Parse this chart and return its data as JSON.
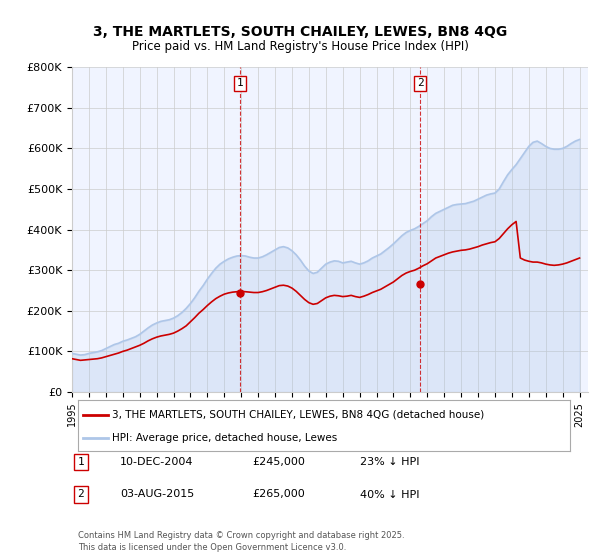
{
  "title_line1": "3, THE MARTLETS, SOUTH CHAILEY, LEWES, BN8 4QG",
  "title_line2": "Price paid vs. HM Land Registry's House Price Index (HPI)",
  "xlabel": "",
  "ylabel": "",
  "ylim": [
    0,
    800000
  ],
  "yticks": [
    0,
    100000,
    200000,
    300000,
    400000,
    500000,
    600000,
    700000,
    800000
  ],
  "ytick_labels": [
    "£0",
    "£100K",
    "£200K",
    "£300K",
    "£400K",
    "£500K",
    "£600K",
    "£700K",
    "£800K"
  ],
  "xlim_start": 1995.0,
  "xlim_end": 2025.5,
  "xticks": [
    1995,
    1996,
    1997,
    1998,
    1999,
    2000,
    2001,
    2002,
    2003,
    2004,
    2005,
    2006,
    2007,
    2008,
    2009,
    2010,
    2011,
    2012,
    2013,
    2014,
    2015,
    2016,
    2017,
    2018,
    2019,
    2020,
    2021,
    2022,
    2023,
    2024,
    2025
  ],
  "hpi_color": "#aec6e8",
  "price_color": "#cc0000",
  "vline_color": "#cc0000",
  "background_color": "#f0f4ff",
  "sale1_x": 2004.94,
  "sale1_y": 245000,
  "sale1_label": "1",
  "sale2_x": 2015.58,
  "sale2_y": 265000,
  "sale2_label": "2",
  "legend_entry1": "3, THE MARTLETS, SOUTH CHAILEY, LEWES, BN8 4QG (detached house)",
  "legend_entry2": "HPI: Average price, detached house, Lewes",
  "table_row1_num": "1",
  "table_row1_date": "10-DEC-2004",
  "table_row1_price": "£245,000",
  "table_row1_hpi": "23% ↓ HPI",
  "table_row2_num": "2",
  "table_row2_date": "03-AUG-2015",
  "table_row2_price": "£265,000",
  "table_row2_hpi": "40% ↓ HPI",
  "footer": "Contains HM Land Registry data © Crown copyright and database right 2025.\nThis data is licensed under the Open Government Licence v3.0.",
  "hpi_data_x": [
    1995.0,
    1995.25,
    1995.5,
    1995.75,
    1996.0,
    1996.25,
    1996.5,
    1996.75,
    1997.0,
    1997.25,
    1997.5,
    1997.75,
    1998.0,
    1998.25,
    1998.5,
    1998.75,
    1999.0,
    1999.25,
    1999.5,
    1999.75,
    2000.0,
    2000.25,
    2000.5,
    2000.75,
    2001.0,
    2001.25,
    2001.5,
    2001.75,
    2002.0,
    2002.25,
    2002.5,
    2002.75,
    2003.0,
    2003.25,
    2003.5,
    2003.75,
    2004.0,
    2004.25,
    2004.5,
    2004.75,
    2005.0,
    2005.25,
    2005.5,
    2005.75,
    2006.0,
    2006.25,
    2006.5,
    2006.75,
    2007.0,
    2007.25,
    2007.5,
    2007.75,
    2008.0,
    2008.25,
    2008.5,
    2008.75,
    2009.0,
    2009.25,
    2009.5,
    2009.75,
    2010.0,
    2010.25,
    2010.5,
    2010.75,
    2011.0,
    2011.25,
    2011.5,
    2011.75,
    2012.0,
    2012.25,
    2012.5,
    2012.75,
    2013.0,
    2013.25,
    2013.5,
    2013.75,
    2014.0,
    2014.25,
    2014.5,
    2014.75,
    2015.0,
    2015.25,
    2015.5,
    2015.75,
    2016.0,
    2016.25,
    2016.5,
    2016.75,
    2017.0,
    2017.25,
    2017.5,
    2017.75,
    2018.0,
    2018.25,
    2018.5,
    2018.75,
    2019.0,
    2019.25,
    2019.5,
    2019.75,
    2020.0,
    2020.25,
    2020.5,
    2020.75,
    2021.0,
    2021.25,
    2021.5,
    2021.75,
    2022.0,
    2022.25,
    2022.5,
    2022.75,
    2023.0,
    2023.25,
    2023.5,
    2023.75,
    2024.0,
    2024.25,
    2024.5,
    2024.75,
    2025.0
  ],
  "hpi_data_y": [
    95000,
    93000,
    91000,
    92000,
    95000,
    97000,
    99000,
    102000,
    107000,
    112000,
    117000,
    120000,
    125000,
    128000,
    132000,
    136000,
    142000,
    150000,
    158000,
    165000,
    170000,
    174000,
    176000,
    178000,
    182000,
    188000,
    196000,
    206000,
    218000,
    232000,
    248000,
    262000,
    278000,
    292000,
    305000,
    315000,
    322000,
    328000,
    332000,
    335000,
    336000,
    335000,
    332000,
    330000,
    330000,
    333000,
    338000,
    344000,
    350000,
    356000,
    358000,
    355000,
    348000,
    338000,
    325000,
    310000,
    298000,
    292000,
    295000,
    305000,
    315000,
    320000,
    323000,
    322000,
    318000,
    320000,
    322000,
    318000,
    315000,
    318000,
    323000,
    330000,
    335000,
    340000,
    348000,
    356000,
    365000,
    375000,
    385000,
    393000,
    398000,
    402000,
    408000,
    415000,
    422000,
    432000,
    440000,
    445000,
    450000,
    455000,
    460000,
    462000,
    463000,
    464000,
    467000,
    470000,
    475000,
    480000,
    485000,
    488000,
    490000,
    500000,
    518000,
    535000,
    548000,
    560000,
    575000,
    590000,
    605000,
    615000,
    618000,
    612000,
    605000,
    600000,
    598000,
    598000,
    600000,
    605000,
    612000,
    618000,
    622000
  ],
  "price_data_x": [
    1995.0,
    1995.25,
    1995.5,
    1995.75,
    1996.0,
    1996.25,
    1996.5,
    1996.75,
    1997.0,
    1997.25,
    1997.5,
    1997.75,
    1998.0,
    1998.25,
    1998.5,
    1998.75,
    1999.0,
    1999.25,
    1999.5,
    1999.75,
    2000.0,
    2000.25,
    2000.5,
    2000.75,
    2001.0,
    2001.25,
    2001.5,
    2001.75,
    2002.0,
    2002.25,
    2002.5,
    2002.75,
    2003.0,
    2003.25,
    2003.5,
    2003.75,
    2004.0,
    2004.25,
    2004.5,
    2004.75,
    2005.0,
    2005.25,
    2005.5,
    2005.75,
    2006.0,
    2006.25,
    2006.5,
    2006.75,
    2007.0,
    2007.25,
    2007.5,
    2007.75,
    2008.0,
    2008.25,
    2008.5,
    2008.75,
    2009.0,
    2009.25,
    2009.5,
    2009.75,
    2010.0,
    2010.25,
    2010.5,
    2010.75,
    2011.0,
    2011.25,
    2011.5,
    2011.75,
    2012.0,
    2012.25,
    2012.5,
    2012.75,
    2013.0,
    2013.25,
    2013.5,
    2013.75,
    2014.0,
    2014.25,
    2014.5,
    2014.75,
    2015.0,
    2015.25,
    2015.5,
    2015.75,
    2016.0,
    2016.25,
    2016.5,
    2016.75,
    2017.0,
    2017.25,
    2017.5,
    2017.75,
    2018.0,
    2018.25,
    2018.5,
    2018.75,
    2019.0,
    2019.25,
    2019.5,
    2019.75,
    2020.0,
    2020.25,
    2020.5,
    2020.75,
    2021.0,
    2021.25,
    2021.5,
    2021.75,
    2022.0,
    2022.25,
    2022.5,
    2022.75,
    2023.0,
    2023.25,
    2023.5,
    2023.75,
    2024.0,
    2024.25,
    2024.5,
    2024.75,
    2025.0
  ],
  "price_data_y": [
    82000,
    80000,
    78000,
    79000,
    80000,
    81000,
    82000,
    84000,
    87000,
    90000,
    93000,
    96000,
    100000,
    103000,
    107000,
    111000,
    115000,
    120000,
    126000,
    131000,
    135000,
    138000,
    140000,
    142000,
    145000,
    150000,
    156000,
    163000,
    173000,
    183000,
    194000,
    203000,
    213000,
    222000,
    230000,
    236000,
    241000,
    244000,
    246000,
    247000,
    248000,
    247000,
    246000,
    245000,
    245000,
    247000,
    250000,
    254000,
    258000,
    262000,
    263000,
    261000,
    256000,
    248000,
    238000,
    228000,
    220000,
    216000,
    218000,
    225000,
    232000,
    236000,
    238000,
    237000,
    235000,
    236000,
    238000,
    235000,
    233000,
    236000,
    240000,
    245000,
    249000,
    253000,
    259000,
    265000,
    271000,
    279000,
    287000,
    293000,
    297000,
    300000,
    305000,
    311000,
    316000,
    323000,
    330000,
    334000,
    338000,
    342000,
    345000,
    347000,
    349000,
    350000,
    352000,
    355000,
    358000,
    362000,
    365000,
    368000,
    370000,
    378000,
    390000,
    402000,
    412000,
    420000,
    330000,
    325000,
    322000,
    320000,
    320000,
    318000,
    315000,
    313000,
    312000,
    313000,
    315000,
    318000,
    322000,
    326000,
    330000
  ]
}
